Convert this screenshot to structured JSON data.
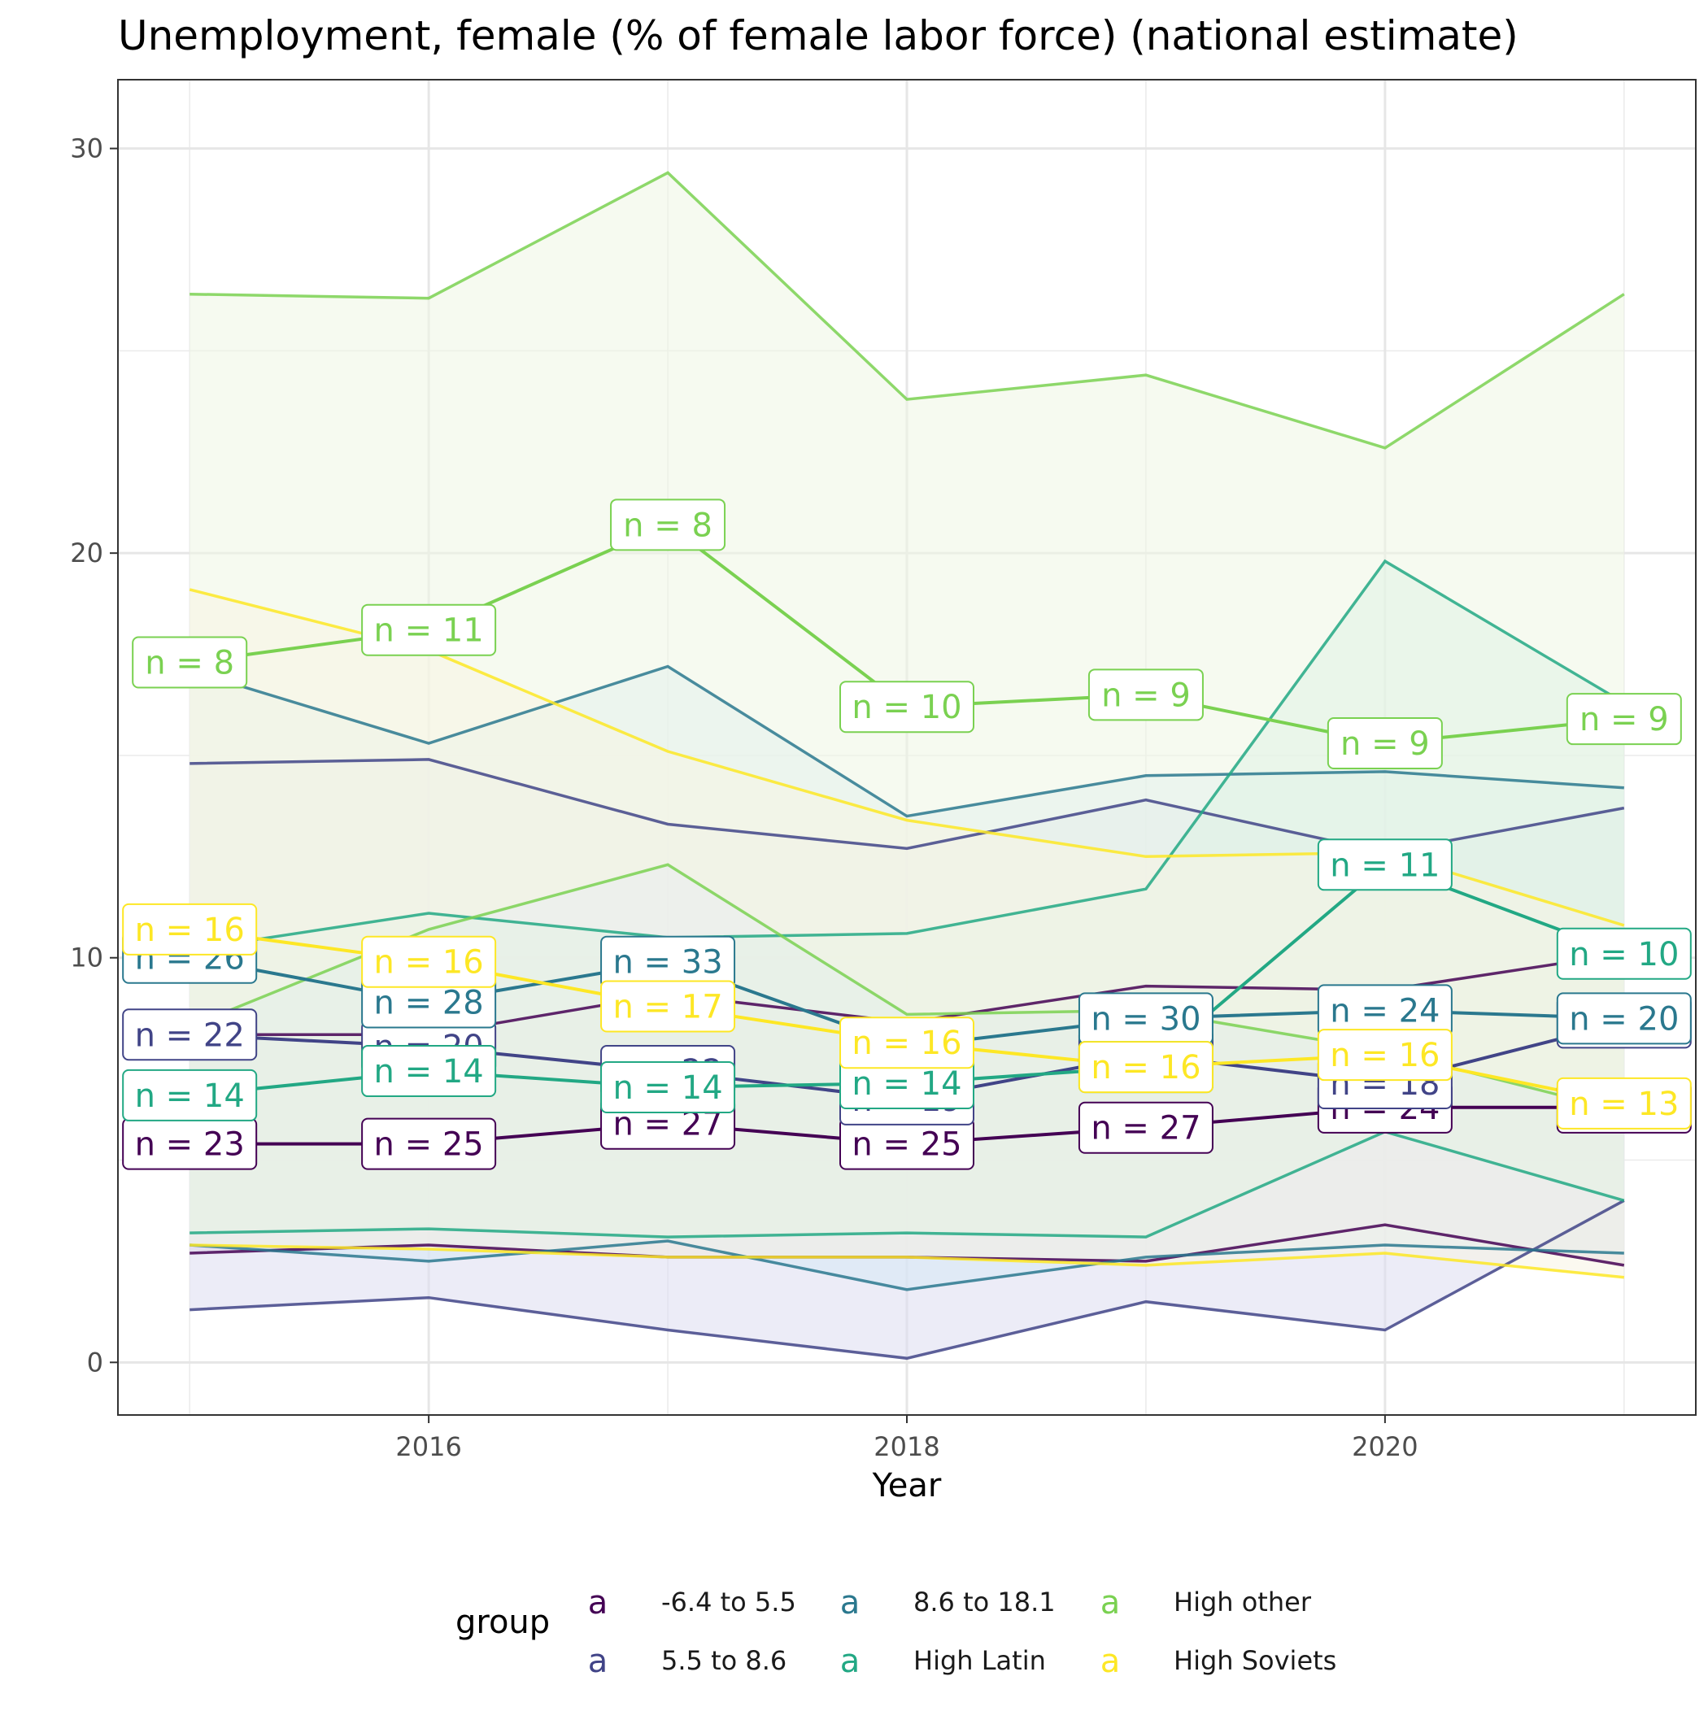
{
  "chart_data": {
    "type": "line",
    "title": "Unemployment, female (% of female labor force) (national estimate)",
    "xlabel": "Year",
    "ylabel": "",
    "x": [
      2015,
      2016,
      2017,
      2018,
      2019,
      2020,
      2021
    ],
    "xticks": [
      "2016",
      "2018",
      "2020"
    ],
    "xlim": [
      2014.7,
      2021.3
    ],
    "yticks": [
      "0",
      "10",
      "20",
      "30"
    ],
    "ylim": [
      -1.3,
      31.7
    ],
    "grid": true,
    "legend": {
      "title": "group",
      "position": "bottom",
      "key_glyph": "a",
      "entries": [
        {
          "name": "-6.4 to 5.5",
          "color": "#440154"
        },
        {
          "name": "5.5 to 8.6",
          "color": "#414487"
        },
        {
          "name": "8.6 to 18.1",
          "color": "#2a788e"
        },
        {
          "name": "High Latin",
          "color": "#22a884"
        },
        {
          "name": "High other",
          "color": "#7ad151"
        },
        {
          "name": "High Soviets",
          "color": "#fde725"
        }
      ]
    },
    "series": [
      {
        "name": "-6.4 to 5.5",
        "color": "#440154",
        "fill": "#e0cfe0",
        "median": [
          5.4,
          5.4,
          5.9,
          5.4,
          5.8,
          6.3,
          6.3
        ],
        "lower": [
          2.7,
          2.9,
          2.6,
          2.6,
          2.5,
          3.4,
          2.4
        ],
        "upper": [
          8.1,
          8.1,
          9.1,
          8.4,
          9.3,
          9.2,
          10.1
        ],
        "n": [
          "23",
          "25",
          "27",
          "25",
          "27",
          "24",
          "24"
        ]
      },
      {
        "name": "5.5 to 8.6",
        "color": "#414487",
        "fill": "#dcdcf0",
        "median": [
          8.1,
          7.8,
          7.2,
          6.5,
          7.6,
          6.9,
          8.4
        ],
        "lower": [
          1.3,
          1.6,
          0.8,
          0.1,
          1.5,
          0.8,
          4.0
        ],
        "upper": [
          14.8,
          14.9,
          13.3,
          12.7,
          13.9,
          12.6,
          13.7
        ],
        "n": [
          "22",
          "20",
          "22",
          "19",
          "22",
          "18",
          "17"
        ]
      },
      {
        "name": "8.6 to 18.1",
        "color": "#2a788e",
        "fill": "#d7eaf5",
        "median": [
          10.0,
          8.9,
          9.9,
          7.8,
          8.5,
          8.7,
          8.5
        ],
        "lower": [
          2.9,
          2.5,
          3.0,
          1.8,
          2.6,
          2.9,
          2.7
        ],
        "upper": [
          17.1,
          15.3,
          17.2,
          13.5,
          14.5,
          14.6,
          14.2
        ],
        "n": [
          "26",
          "28",
          "33",
          "28",
          "30",
          "24",
          "20"
        ]
      },
      {
        "name": "High Latin",
        "color": "#22a884",
        "fill": "#cdeee6",
        "median": [
          6.6,
          7.2,
          6.8,
          6.9,
          7.3,
          12.3,
          10.1
        ],
        "lower": [
          3.2,
          3.3,
          3.1,
          3.2,
          3.1,
          5.7,
          4.0
        ],
        "upper": [
          10.2,
          11.1,
          10.5,
          10.6,
          11.7,
          19.8,
          16.3
        ],
        "n": [
          "14",
          "14",
          "14",
          "14",
          "14",
          "11",
          "10"
        ]
      },
      {
        "name": "High other",
        "color": "#7ad151",
        "fill": "#eef5e4",
        "median": [
          17.3,
          18.1,
          20.7,
          16.2,
          16.5,
          15.3,
          15.9
        ],
        "lower": [
          8.3,
          10.7,
          12.3,
          8.6,
          8.7,
          7.7,
          6.2
        ],
        "upper": [
          26.4,
          26.3,
          29.4,
          23.8,
          24.4,
          22.6,
          26.4
        ],
        "n": [
          "8",
          "11",
          "8",
          "10",
          "9",
          "9",
          "9"
        ]
      },
      {
        "name": "High Soviets",
        "color": "#fde725",
        "fill": "#f7f4e4",
        "median": [
          10.7,
          9.9,
          8.8,
          7.9,
          7.3,
          7.6,
          6.4
        ],
        "lower": [
          2.9,
          2.8,
          2.6,
          2.6,
          2.4,
          2.7,
          2.1
        ],
        "upper": [
          19.1,
          17.6,
          15.1,
          13.4,
          12.5,
          12.6,
          10.8
        ],
        "n": [
          "16",
          "16",
          "17",
          "16",
          "16",
          "16",
          "13"
        ]
      }
    ]
  }
}
